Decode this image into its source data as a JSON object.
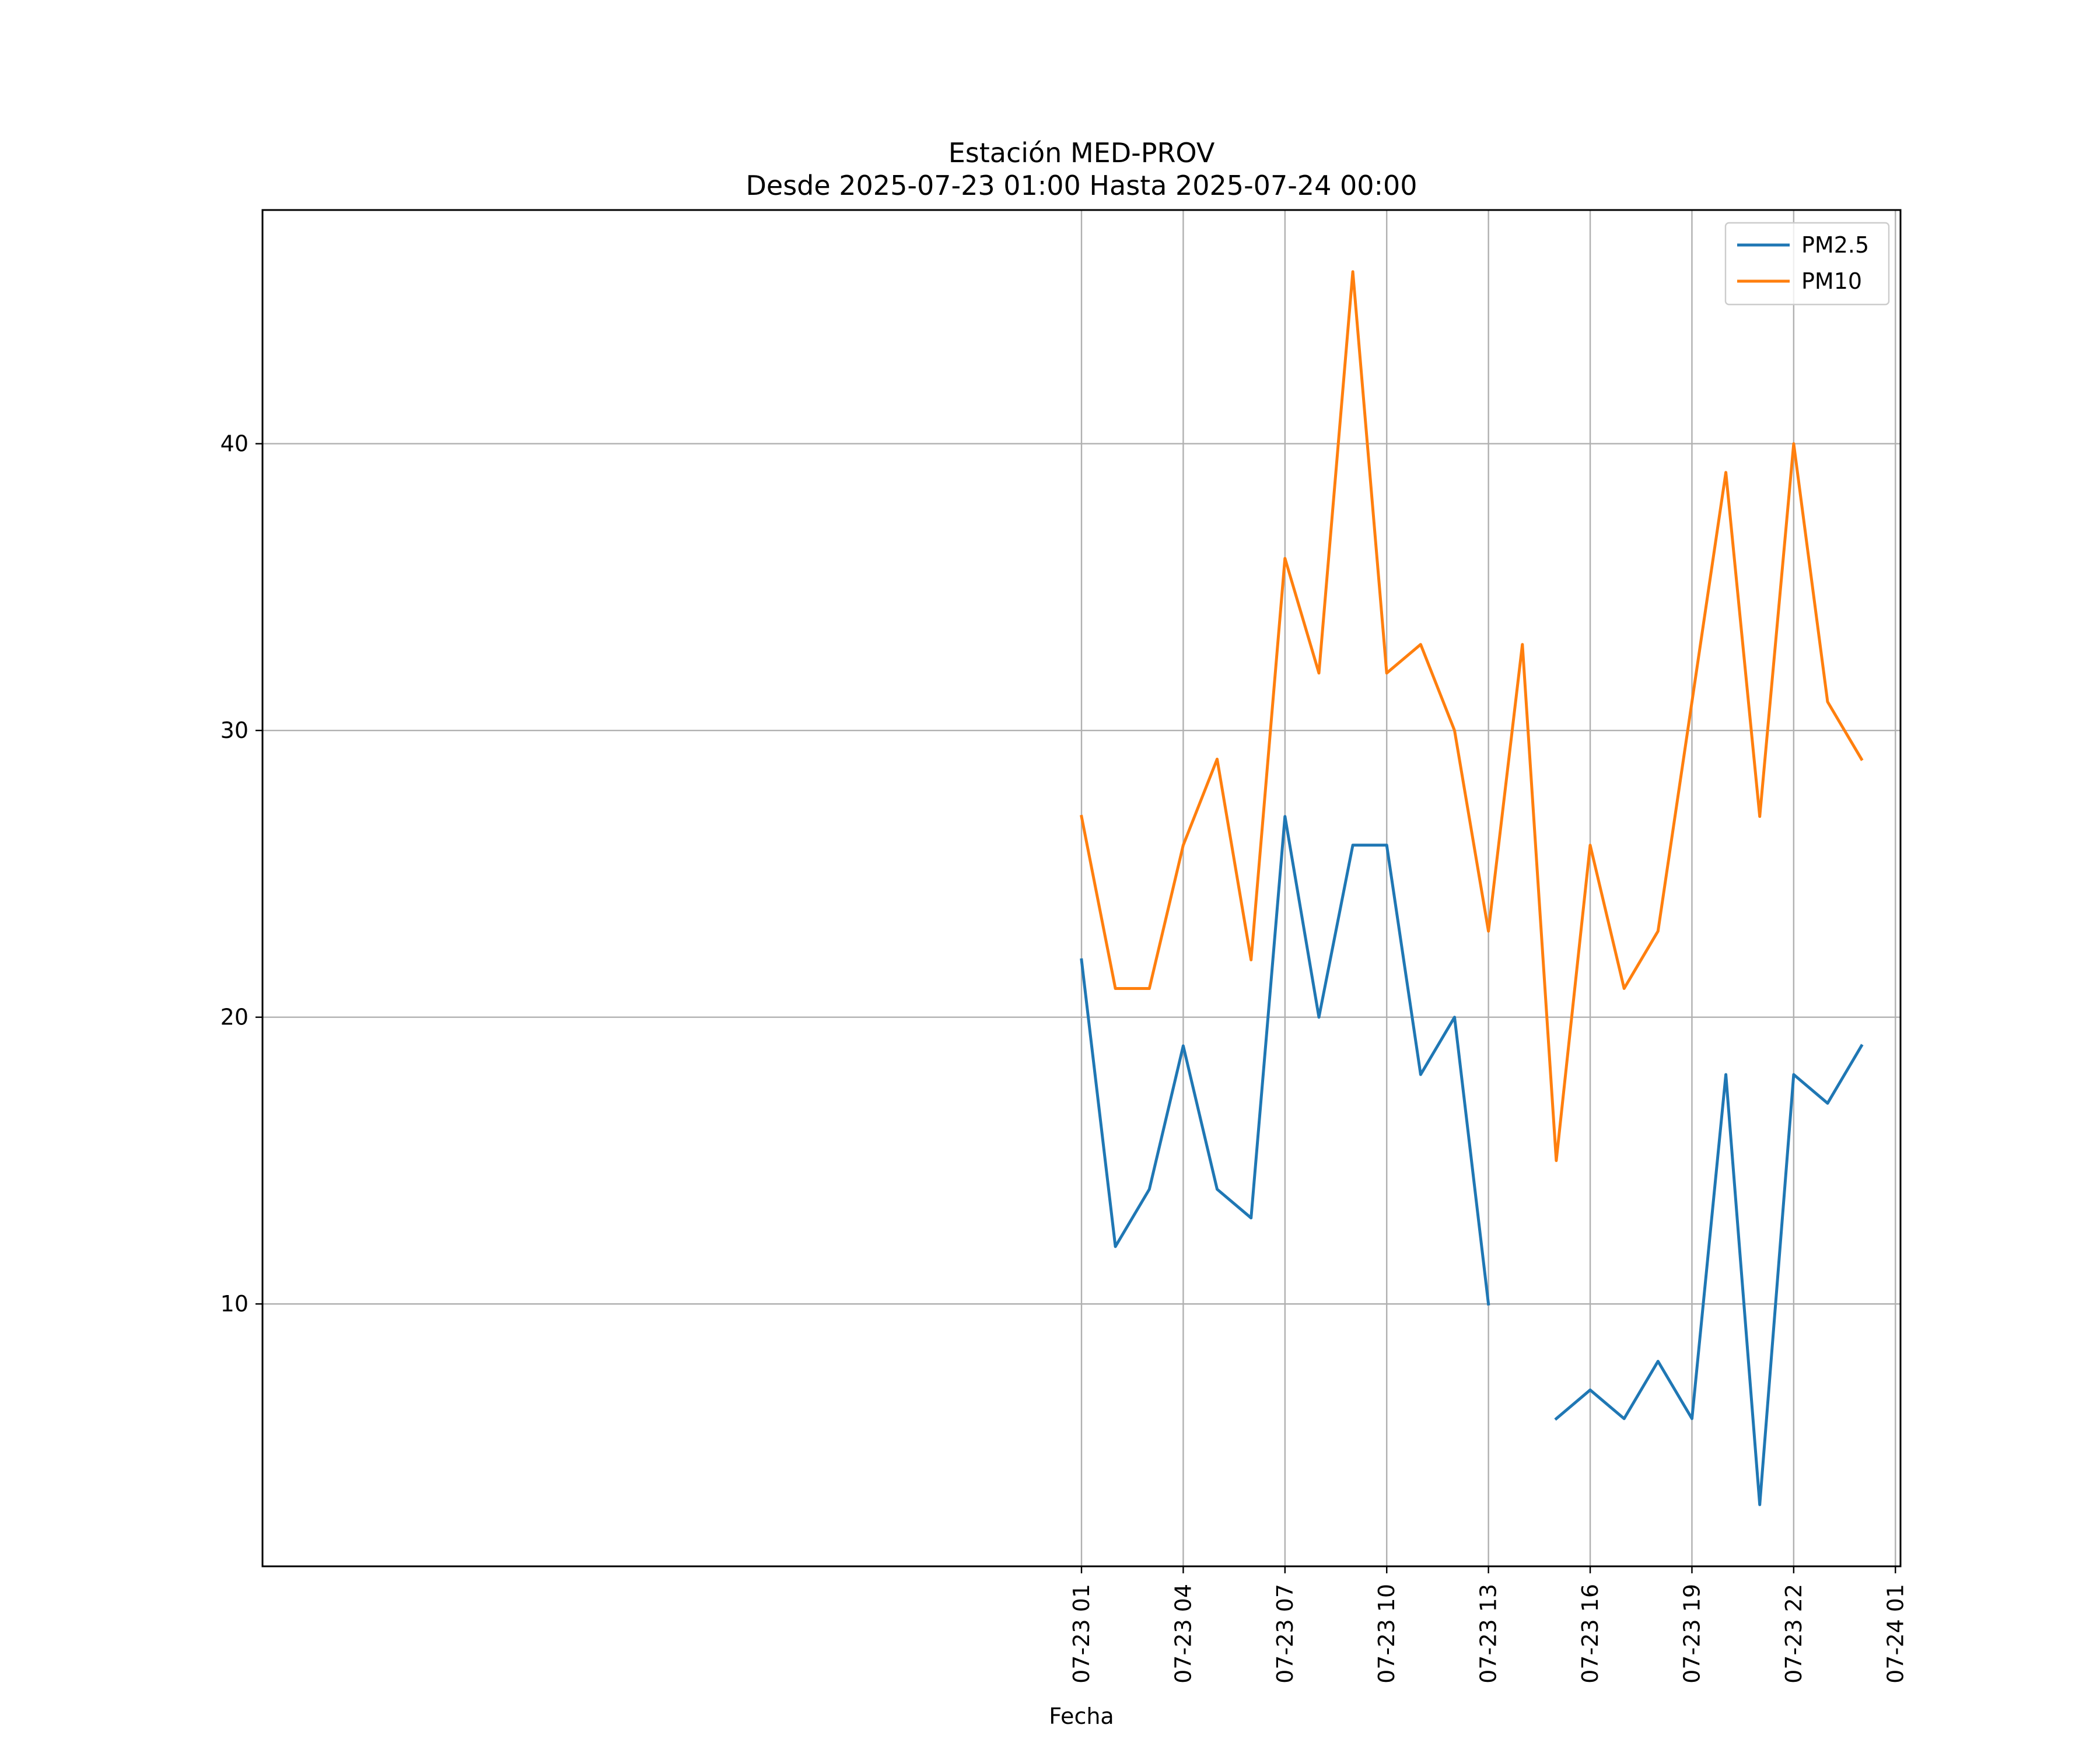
{
  "chart_data": {
    "type": "line",
    "title_line1": "Estación MED-PROV",
    "title_line2": "Desde 2025-07-23 01:00 Hasta 2025-07-24 00:00",
    "xlabel": "Fecha",
    "ylabel": "",
    "x": [
      "2025-07-23 01:00",
      "2025-07-23 02:00",
      "2025-07-23 03:00",
      "2025-07-23 04:00",
      "2025-07-23 05:00",
      "2025-07-23 06:00",
      "2025-07-23 07:00",
      "2025-07-23 08:00",
      "2025-07-23 09:00",
      "2025-07-23 10:00",
      "2025-07-23 11:00",
      "2025-07-23 12:00",
      "2025-07-23 13:00",
      "2025-07-23 14:00",
      "2025-07-23 15:00",
      "2025-07-23 16:00",
      "2025-07-23 17:00",
      "2025-07-23 18:00",
      "2025-07-23 19:00",
      "2025-07-23 20:00",
      "2025-07-23 21:00",
      "2025-07-23 22:00",
      "2025-07-23 23:00",
      "2025-07-24 00:00"
    ],
    "series": [
      {
        "name": "PM2.5",
        "color": "#1f77b4",
        "values": [
          22,
          12,
          14,
          19,
          14,
          13,
          27,
          20,
          26,
          26,
          18,
          20,
          10,
          null,
          6,
          7,
          6,
          8,
          6,
          18,
          3,
          18,
          17,
          19
        ]
      },
      {
        "name": "PM10",
        "color": "#ff7f0e",
        "values": [
          27,
          21,
          21,
          26,
          29,
          22,
          36,
          32,
          46,
          32,
          33,
          30,
          23,
          33,
          15,
          26,
          21,
          23,
          31,
          39,
          27,
          40,
          31,
          29
        ]
      }
    ],
    "x_ticks": [
      "07-23 01",
      "07-23 04",
      "07-23 07",
      "07-23 10",
      "07-23 13",
      "07-23 16",
      "07-23 19",
      "07-23 22",
      "07-24 01"
    ],
    "y_ticks": [
      10,
      20,
      30,
      40
    ],
    "xlim": [
      "2025-07-22 00:51",
      "2025-07-24 01:09"
    ],
    "ylim": [
      0.85,
      48.15
    ],
    "grid": true,
    "legend_position": "top-right"
  }
}
